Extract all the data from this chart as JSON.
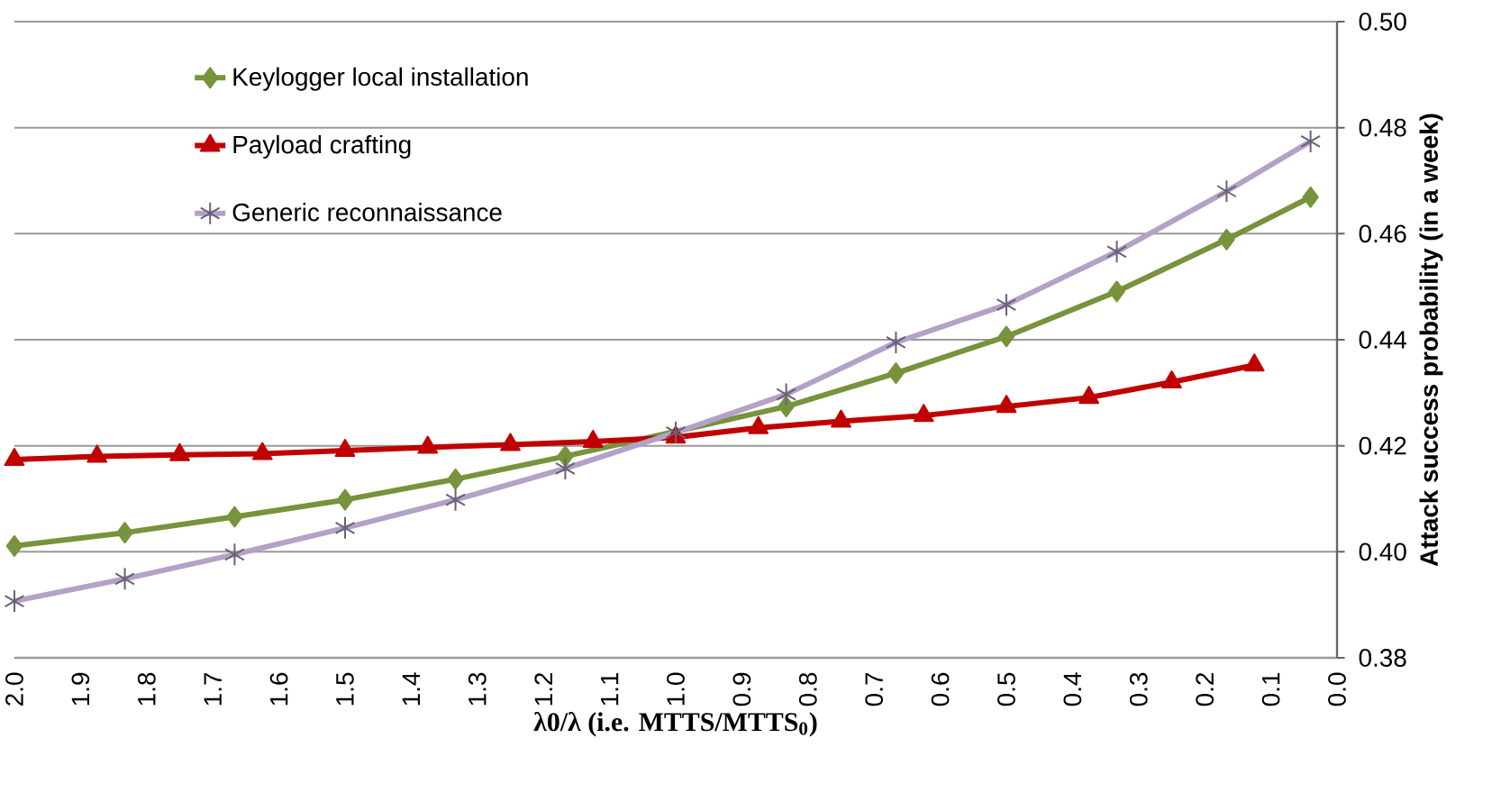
{
  "chart_data": {
    "type": "line",
    "xlabel": "**λ0/λ (i.e. MTTS/MTTS$_{0}$)**",
    "ylabel": "Attack success probability (in a week)",
    "xlim": [
      2.0,
      0.0
    ],
    "xticks": [
      {
        "value": 2.0,
        "label": "2.0"
      },
      {
        "value": 1.9,
        "label": "1.9"
      },
      {
        "value": 1.8,
        "label": "1.8"
      },
      {
        "value": 1.7,
        "label": "1.7"
      },
      {
        "value": 1.6,
        "label": "1.6"
      },
      {
        "value": 1.5,
        "label": "1.5"
      },
      {
        "value": 1.4,
        "label": "1.4"
      },
      {
        "value": 1.3,
        "label": "1.3"
      },
      {
        "value": 1.2,
        "label": "1.2"
      },
      {
        "value": 1.1,
        "label": "1.1"
      },
      {
        "value": 1.0,
        "label": "1.0"
      },
      {
        "value": 0.9,
        "label": "0.9"
      },
      {
        "value": 0.8,
        "label": "0.8"
      },
      {
        "value": 0.7,
        "label": "0.7"
      },
      {
        "value": 0.6,
        "label": "0.6"
      },
      {
        "value": 0.5,
        "label": "0.5"
      },
      {
        "value": 0.4,
        "label": "0.4"
      },
      {
        "value": 0.3,
        "label": "0.3"
      },
      {
        "value": 0.2,
        "label": "0.2"
      },
      {
        "value": 0.1,
        "label": "0.1"
      },
      {
        "value": 0.0,
        "label": "0.0"
      }
    ],
    "ylim": [
      0.38,
      0.5
    ],
    "yticks": [
      {
        "value": 0.38,
        "label": "0.38"
      },
      {
        "value": 0.4,
        "label": "0.40"
      },
      {
        "value": 0.42,
        "label": "0.42"
      },
      {
        "value": 0.44,
        "label": "0.44"
      },
      {
        "value": 0.46,
        "label": "0.46"
      },
      {
        "value": 0.48,
        "label": "0.48"
      },
      {
        "value": 0.5,
        "label": "0.50"
      }
    ],
    "grid": "y",
    "legend": "top left",
    "line_style": "solid",
    "series": [
      {
        "name": "Keylogger local installation",
        "color": "#77933c",
        "marker": "diamond",
        "x": [
          2.0,
          1.833,
          1.667,
          1.5,
          1.333,
          1.167,
          1.0,
          0.833,
          0.667,
          0.5,
          0.333,
          0.167,
          0.04
        ],
        "values": [
          0.4011,
          0.4036,
          0.4066,
          0.4098,
          0.4137,
          0.418,
          null,
          0.4274,
          0.4337,
          0.4406,
          0.4491,
          0.4589,
          0.4669
        ]
      },
      {
        "name": "Payload crafting",
        "color": "#c00000",
        "marker": "triangle",
        "x": [
          2.0,
          1.875,
          1.75,
          1.625,
          1.5,
          1.375,
          1.25,
          1.125,
          1.0,
          0.875,
          0.75,
          0.625,
          0.5,
          0.375,
          0.25,
          0.125
        ],
        "values": [
          0.4174,
          0.418,
          0.4183,
          0.4185,
          0.4191,
          0.4197,
          0.4202,
          0.4208,
          0.4216,
          0.4234,
          0.4246,
          0.4257,
          0.4274,
          0.4291,
          0.432,
          0.4352
        ]
      },
      {
        "name": "Generic reconnaissance",
        "color": "#b3a2c7",
        "marker": "cross",
        "x": [
          2.0,
          1.833,
          1.667,
          1.5,
          1.333,
          1.167,
          1.0,
          0.833,
          0.667,
          0.5,
          0.333,
          0.167,
          0.04
        ],
        "values": [
          0.3907,
          0.3949,
          0.3995,
          0.4045,
          0.4098,
          0.4157,
          0.4225,
          0.4297,
          0.4395,
          0.4466,
          0.4566,
          0.468,
          0.4774
        ]
      }
    ]
  }
}
